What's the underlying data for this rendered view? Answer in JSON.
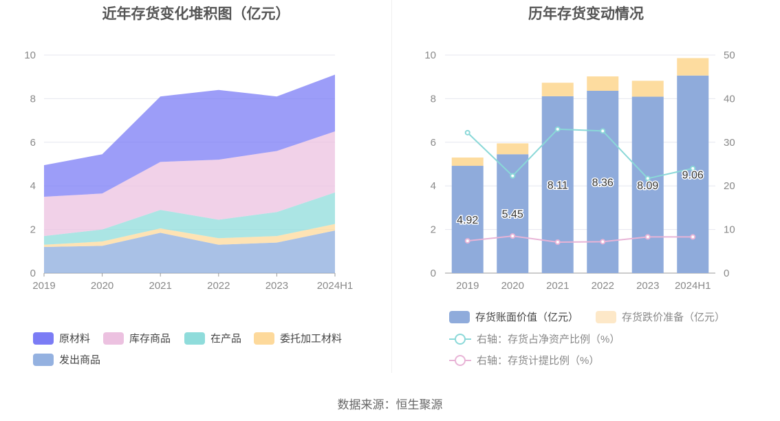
{
  "titles": {
    "left": "近年存货变化堆积图（亿元）",
    "right": "历年存货变动情况"
  },
  "source": "数据来源：恒生聚源",
  "colors": {
    "raw_material": "#7b7cf5",
    "finished_goods": "#ecc1e0",
    "wip": "#8fdcdb",
    "consigned": "#fdd99b",
    "shipped": "#94b1e0",
    "bar_book": "#8fabdb",
    "bar_reserve": "#fddc9f",
    "line_ratio": "#8ad8d8",
    "line_provision": "#e8b3d6"
  },
  "chart_data": [
    {
      "type": "area",
      "stacked": true,
      "title": "近年存货变化堆积图（亿元）",
      "categories": [
        "2019",
        "2020",
        "2021",
        "2022",
        "2023",
        "2024H1"
      ],
      "ylim": [
        0,
        10
      ],
      "yticks": [
        "0",
        "2",
        "4",
        "6",
        "8",
        "10"
      ],
      "series": [
        {
          "key": "shipped",
          "name": "发出商品",
          "values": [
            1.2,
            1.25,
            1.85,
            1.3,
            1.4,
            1.95
          ]
        },
        {
          "key": "consigned",
          "name": "委托加工材料",
          "values": [
            0.1,
            0.2,
            0.2,
            0.3,
            0.3,
            0.3
          ]
        },
        {
          "key": "wip",
          "name": "在产品",
          "values": [
            0.4,
            0.55,
            0.85,
            0.85,
            1.1,
            1.45
          ]
        },
        {
          "key": "finished_goods",
          "name": "库存商品",
          "values": [
            1.8,
            1.65,
            2.2,
            2.75,
            2.8,
            2.8
          ]
        },
        {
          "key": "raw_material",
          "name": "原材料",
          "values": [
            1.45,
            1.8,
            3.0,
            3.2,
            2.5,
            2.6
          ]
        }
      ],
      "legend": [
        {
          "key": "raw_material",
          "name": "原材料"
        },
        {
          "key": "finished_goods",
          "name": "库存商品"
        },
        {
          "key": "wip",
          "name": "在产品"
        },
        {
          "key": "consigned",
          "name": "委托加工材料"
        },
        {
          "key": "shipped",
          "name": "发出商品"
        }
      ],
      "legend_position": "bottom-left"
    },
    {
      "type": "bar",
      "stacked": true,
      "title": "历年存货变动情况",
      "categories": [
        "2019",
        "2020",
        "2021",
        "2022",
        "2023",
        "2024H1"
      ],
      "ylim": [
        0,
        10
      ],
      "yticks": [
        "0",
        "2",
        "4",
        "6",
        "8",
        "10"
      ],
      "y2lim": [
        0,
        50
      ],
      "y2ticks": [
        "0",
        "10",
        "20",
        "30",
        "40",
        "50"
      ],
      "series": [
        {
          "key": "bar_book",
          "name": "存货账面价值（亿元）",
          "axis": "left",
          "values": [
            4.92,
            5.45,
            8.11,
            8.36,
            8.09,
            9.06
          ],
          "labels": [
            "4.92",
            "5.45",
            "8.11",
            "8.36",
            "8.09",
            "9.06"
          ]
        },
        {
          "key": "bar_reserve",
          "name": "存货跌价准备（亿元）",
          "axis": "left",
          "values": [
            0.38,
            0.5,
            0.62,
            0.66,
            0.73,
            0.8
          ]
        }
      ],
      "lines": [
        {
          "key": "line_ratio",
          "name": "右轴：存货占净资产比例（%）",
          "axis": "right",
          "values": [
            32.2,
            22.3,
            33.0,
            32.6,
            21.7,
            24.0
          ]
        },
        {
          "key": "line_provision",
          "name": "右轴：存货计提比例（%）",
          "axis": "right",
          "values": [
            7.4,
            8.5,
            7.1,
            7.2,
            8.3,
            8.3
          ]
        }
      ],
      "legend_position": "bottom"
    }
  ]
}
